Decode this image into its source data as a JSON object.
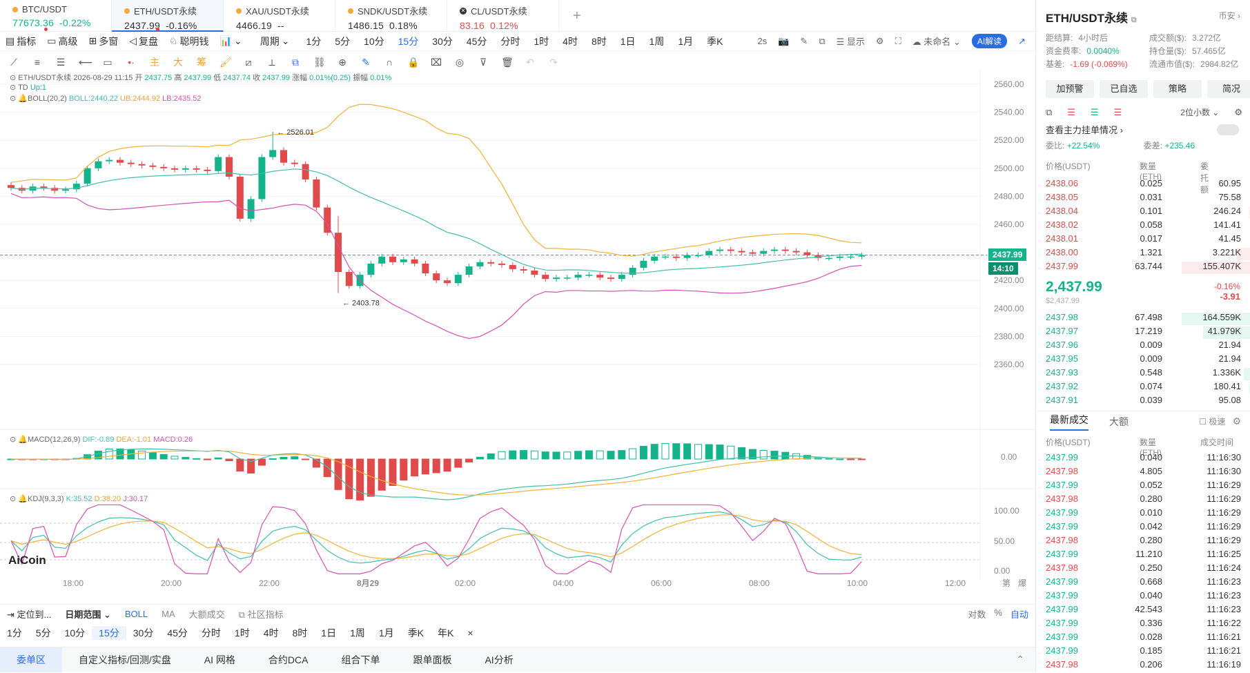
{
  "tabs": [
    {
      "name": "BTC/USDT",
      "price": "77673.36",
      "chg": "-0.22%",
      "price_color": "#14b38b",
      "chg_color": "#14b38b",
      "icon": "coin-icon"
    },
    {
      "name": "ETH/USDT永续",
      "price": "2437.99",
      "chg": "-0.16%",
      "price_color": "#333",
      "chg_color": "#333",
      "icon": "coin-icon"
    },
    {
      "name": "XAU/USDT永续",
      "price": "4466.19",
      "chg": "--",
      "price_color": "#333",
      "chg_color": "#333",
      "icon": "coin-icon"
    },
    {
      "name": "SNDK/USDT永续",
      "price": "1486.15",
      "chg": "0.18%",
      "price_color": "#333",
      "chg_color": "#333",
      "icon": "coin-icon"
    },
    {
      "name": "CL/USDT永续",
      "price": "83.16",
      "chg": "0.12%",
      "price_color": "#e04a4a",
      "chg_color": "#e04a4a",
      "icon": "close-circle-icon"
    }
  ],
  "toolbar1": {
    "items": [
      "指标",
      "高级",
      "多窗",
      "复盘",
      "聪明钱",
      "",
      "周期",
      "1分",
      "5分",
      "10分",
      "15分",
      "30分",
      "45分",
      "分时",
      "1时",
      "4时",
      "8时",
      "1日",
      "1周",
      "1月",
      "季K"
    ],
    "right": [
      "2s",
      "显示",
      "未命名",
      "AI解读"
    ]
  },
  "legend": {
    "main": "ETH/USDT永续 2026-08-29 11:15",
    "open_label": "开",
    "open": "2437.75",
    "high_label": "高",
    "high": "2437.99",
    "low_label": "低",
    "low": "2437.74",
    "close_label": "收",
    "close": "2437.99",
    "chg_label": "涨幅",
    "chg": "0.01%(0.25)",
    "amp_label": "振幅",
    "amp": "0.01%",
    "td": "TD",
    "td_val": "Up:1",
    "boll": "BOLL(20,2)",
    "boll_mid": "BOLL:2440.22",
    "boll_ub": "UB:2444.92",
    "boll_lb": "LB:2435.52",
    "macd": "MACD(12,26,9)",
    "macd_dif": "DIF:-0.89",
    "macd_dea": "DEA:-1.01",
    "macd_macd": "MACD:0.26",
    "kdj": "KDJ(9,3,3)",
    "kdj_k": "K:35.52",
    "kdj_d": "D:38.20",
    "kdj_j": "J:30.17"
  },
  "price_axis": [
    "2560.00",
    "2540.00",
    "2520.00",
    "2500.00",
    "2480.00",
    "2460.00",
    "2440.00",
    "2420.00",
    "2400.00",
    "2380.00",
    "2360.00"
  ],
  "macd_axis": [
    "0.00"
  ],
  "kdj_axis": [
    "100.00",
    "50.00",
    "0.00"
  ],
  "time_axis": [
    "18:00",
    "20:00",
    "22:00",
    "8月29",
    "02:00",
    "04:00",
    "06:00",
    "08:00",
    "10:00",
    "12:00"
  ],
  "annotations": {
    "high": "← 2526.01",
    "low": "← 2403.78"
  },
  "current_price": "2437.99",
  "countdown": "14:10",
  "logo": "AiCoin",
  "axis_corner": [
    "第",
    "爆"
  ],
  "bottom1": [
    "定位到...",
    "日期范围",
    "BOLL",
    "MA",
    "大额成交",
    "社区指标"
  ],
  "bottom1_right": [
    "对数",
    "%",
    "自动"
  ],
  "bottom2": [
    "1分",
    "5分",
    "10分",
    "15分",
    "30分",
    "45分",
    "分时",
    "1时",
    "4时",
    "8时",
    "1日",
    "1周",
    "1月",
    "季K",
    "年K",
    "×"
  ],
  "bottom3": [
    "委单区",
    "自定义指标/回测/实盘",
    "AI 网格",
    "合约DCA",
    "组合下单",
    "跟单面板",
    "AI分析"
  ],
  "right": {
    "title": "ETH/USDT永续",
    "exchange": "币安",
    "stats": [
      {
        "k": "距结算:",
        "v": "4小时后",
        "c": "#888"
      },
      {
        "k": "成交额($):",
        "v": "3.272亿",
        "c": "#888"
      },
      {
        "k": "资金费率:",
        "v": "0.0040%",
        "c": "#14b38b"
      },
      {
        "k": "持仓量($):",
        "v": "57.465亿",
        "c": "#888"
      },
      {
        "k": "基差:",
        "v": "-1.69 (-0.069%)",
        "c": "#e04a4a"
      },
      {
        "k": "流通市值($):",
        "v": "2984.82亿",
        "c": "#888"
      }
    ],
    "buttons": [
      "加预警",
      "已自选",
      "策略",
      "简况"
    ],
    "decimal": "2位小数",
    "main_orders": "查看主力挂单情况",
    "ratio_label": "委比:",
    "ratio": "+22.54%",
    "diff_label": "委差:",
    "diff": "+235.46",
    "ob_headers": [
      "价格(USDT)",
      "数量 (ETH)",
      "委托额"
    ],
    "asks": [
      [
        "2438.06",
        "0.025",
        "60.95"
      ],
      [
        "2438.05",
        "0.031",
        "75.58"
      ],
      [
        "2438.04",
        "0.101",
        "246.24"
      ],
      [
        "2438.02",
        "0.058",
        "141.41"
      ],
      [
        "2438.01",
        "0.017",
        "41.45"
      ],
      [
        "2438.00",
        "1.321",
        "3.221K"
      ],
      [
        "2437.99",
        "63.744",
        "155.407K"
      ]
    ],
    "last": "2,437.99",
    "last_usd": "$2,437.99",
    "last_chg": "-0.16%",
    "last_diff": "-3.91",
    "bids": [
      [
        "2437.98",
        "67.498",
        "164.559K"
      ],
      [
        "2437.97",
        "17.219",
        "41.979K"
      ],
      [
        "2437.96",
        "0.009",
        "21.94"
      ],
      [
        "2437.95",
        "0.009",
        "21.94"
      ],
      [
        "2437.93",
        "0.548",
        "1.336K"
      ],
      [
        "2437.92",
        "0.074",
        "180.41"
      ],
      [
        "2437.91",
        "0.039",
        "95.08"
      ]
    ],
    "trade_tabs": [
      "最新成交",
      "大额"
    ],
    "fast": "极速",
    "trade_headers": [
      "价格(USDT)",
      "数量(ETH)",
      "成交时间"
    ],
    "trades": [
      [
        "2437.99",
        "0.040",
        "11:16:30",
        "g"
      ],
      [
        "2437.98",
        "4.805",
        "11:16:30",
        "r"
      ],
      [
        "2437.99",
        "0.052",
        "11:16:29",
        "g"
      ],
      [
        "2437.98",
        "0.280",
        "11:16:29",
        "r"
      ],
      [
        "2437.99",
        "0.010",
        "11:16:29",
        "g"
      ],
      [
        "2437.99",
        "0.042",
        "11:16:29",
        "g"
      ],
      [
        "2437.98",
        "0.280",
        "11:16:29",
        "r"
      ],
      [
        "2437.99",
        "11.210",
        "11:16:25",
        "g"
      ],
      [
        "2437.98",
        "0.250",
        "11:16:24",
        "r"
      ],
      [
        "2437.99",
        "0.668",
        "11:16:23",
        "g"
      ],
      [
        "2437.99",
        "0.040",
        "11:16:23",
        "g"
      ],
      [
        "2437.99",
        "42.543",
        "11:16:23",
        "g"
      ],
      [
        "2437.99",
        "0.336",
        "11:16:22",
        "g"
      ],
      [
        "2437.99",
        "0.028",
        "11:16:21",
        "g"
      ],
      [
        "2437.99",
        "0.185",
        "11:16:21",
        "g"
      ],
      [
        "2437.98",
        "0.206",
        "11:16:19",
        "r"
      ]
    ]
  },
  "colors": {
    "up": "#14b38b",
    "down": "#e04a4a",
    "boll_mid": "#3fbfaa",
    "boll_ub": "#f2b233",
    "boll_lb": "#d64fb3",
    "accent": "#2a6de0"
  }
}
